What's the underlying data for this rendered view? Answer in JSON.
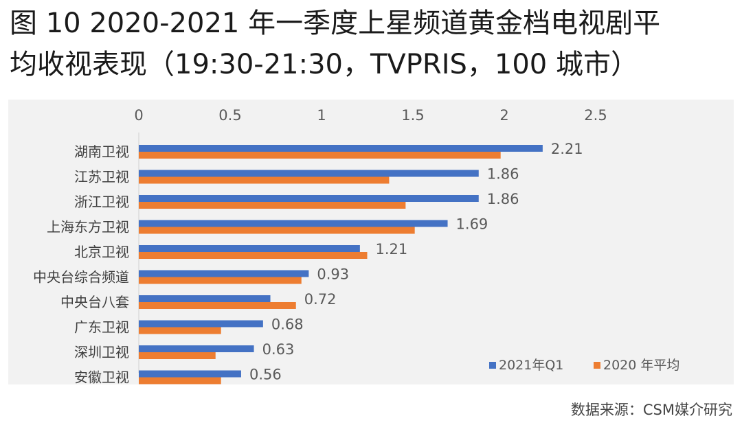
{
  "title_line1": "图 10 2020-2021 年一季度上星频道黄金档电视剧平",
  "title_line2": "均收视表现（19:30-21:30，TVPRIS，100 城市）",
  "source": "数据来源：CSM媒介研究",
  "colors": {
    "series1": "#4472C4",
    "series2": "#ED7D31",
    "background": "#F2F2F2"
  },
  "chart_data": {
    "type": "bar",
    "orientation": "horizontal",
    "categories": [
      "湖南卫视",
      "江苏卫视",
      "浙江卫视",
      "上海东方卫视",
      "北京卫视",
      "中央台综合频道",
      "中央台八套",
      "广东卫视",
      "深圳卫视",
      "安徽卫视"
    ],
    "series": [
      {
        "name": "2021年Q1",
        "values": [
          2.21,
          1.86,
          1.86,
          1.69,
          1.21,
          0.93,
          0.72,
          0.68,
          0.63,
          0.56
        ],
        "labels": [
          "2.21",
          "1.86",
          "1.86",
          "1.69",
          "1.21",
          "0.93",
          "0.72",
          "0.68",
          "0.63",
          "0.56"
        ]
      },
      {
        "name": "2020 年平均",
        "values": [
          1.98,
          1.37,
          1.46,
          1.51,
          1.25,
          0.89,
          0.86,
          0.45,
          0.42,
          0.45
        ]
      }
    ],
    "xlim": [
      0,
      2.5
    ],
    "xticks": [
      "0",
      "0.5",
      "1",
      "1.5",
      "2",
      "2.5"
    ],
    "xtick_values": [
      0,
      0.5,
      1,
      1.5,
      2,
      2.5
    ],
    "axis_position": "top",
    "legend_position": "bottom-right",
    "grid": false
  }
}
